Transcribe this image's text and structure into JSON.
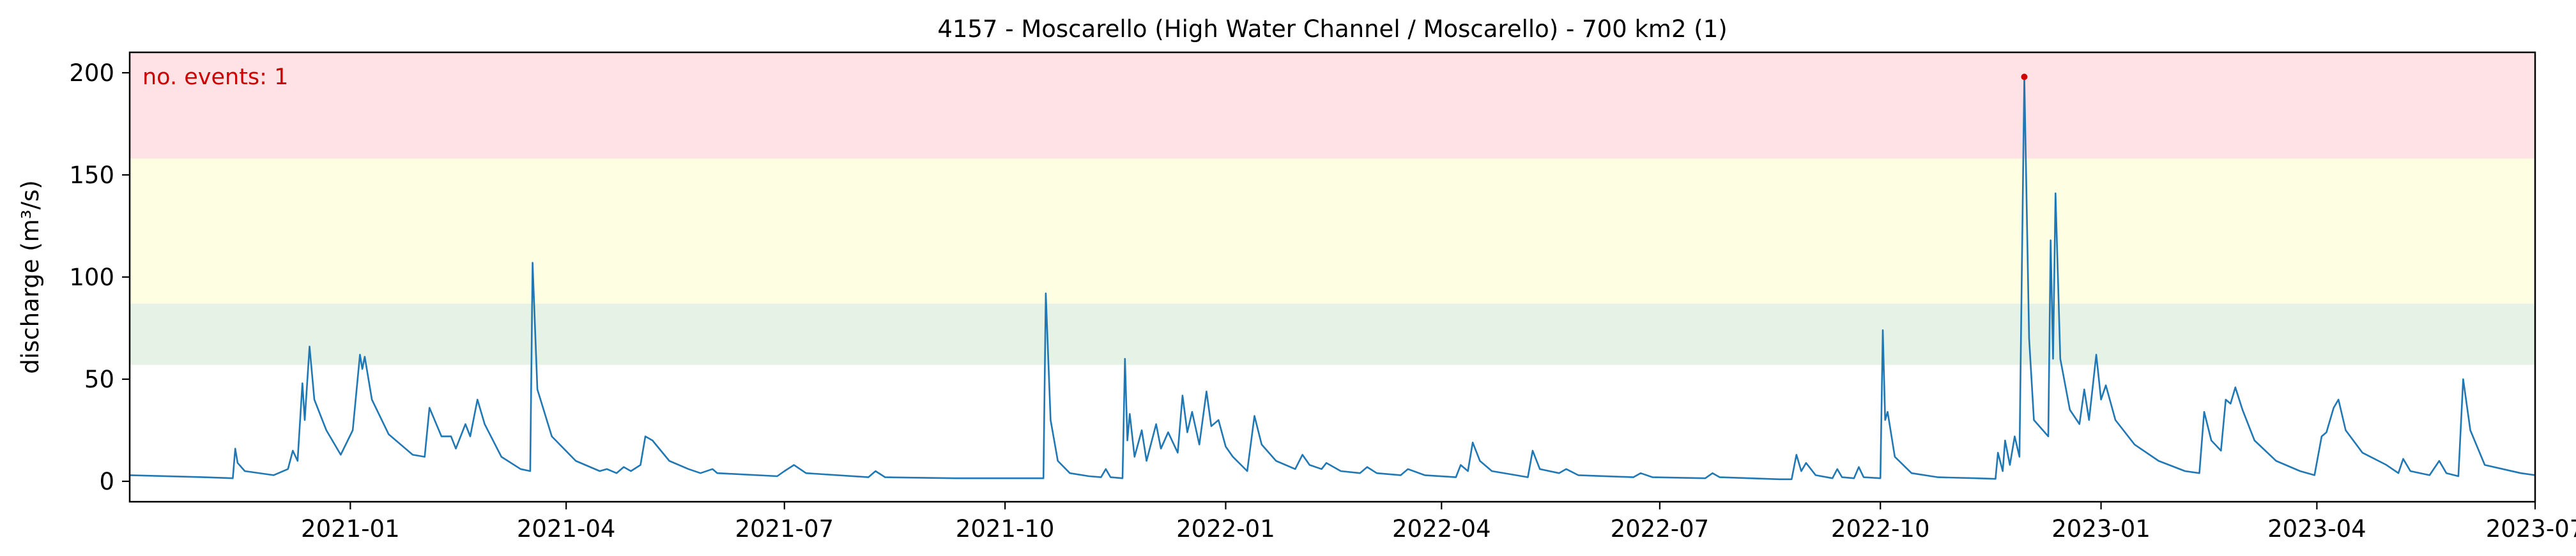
{
  "chart_data": {
    "type": "line",
    "title": "4157 - Moscarello (High Water Channel / Moscarello) - 700 km2 (1)",
    "xlabel": "",
    "ylabel": "discharge (m³/s)",
    "xlim": [
      "2020-10-01",
      "2023-07-01"
    ],
    "ylim": [
      -10,
      210
    ],
    "x_ticks": [
      "2021-01",
      "2021-04",
      "2021-07",
      "2021-10",
      "2022-01",
      "2022-04",
      "2022-07",
      "2022-10",
      "2023-01",
      "2023-04",
      "2023-07"
    ],
    "y_ticks": [
      0,
      50,
      100,
      150,
      200
    ],
    "grid": false,
    "annotation": {
      "text": "no. events: 1",
      "color": "#cc0000"
    },
    "threshold_bands": [
      {
        "from": 57,
        "to": 87,
        "color": "#e5f2e5"
      },
      {
        "from": 87,
        "to": 158,
        "color": "#fefee3"
      },
      {
        "from": 158,
        "to": 210,
        "color": "#ffe2e5"
      }
    ],
    "series": [
      {
        "color": "#1f77b4",
        "points": [
          [
            "2020-10-01",
            3
          ],
          [
            "2020-11-01",
            2
          ],
          [
            "2020-11-13",
            1.5
          ],
          [
            "2020-11-14",
            16
          ],
          [
            "2020-11-15",
            9
          ],
          [
            "2020-11-18",
            5
          ],
          [
            "2020-11-30",
            3
          ],
          [
            "2020-12-06",
            6
          ],
          [
            "2020-12-08",
            15
          ],
          [
            "2020-12-10",
            10
          ],
          [
            "2020-12-12",
            48
          ],
          [
            "2020-12-13",
            30
          ],
          [
            "2020-12-15",
            66
          ],
          [
            "2020-12-17",
            40
          ],
          [
            "2020-12-22",
            25
          ],
          [
            "2020-12-28",
            13
          ],
          [
            "2021-01-02",
            25
          ],
          [
            "2021-01-05",
            62
          ],
          [
            "2021-01-06",
            55
          ],
          [
            "2021-01-07",
            61
          ],
          [
            "2021-01-10",
            40
          ],
          [
            "2021-01-17",
            23
          ],
          [
            "2021-01-27",
            13
          ],
          [
            "2021-02-01",
            12
          ],
          [
            "2021-02-03",
            36
          ],
          [
            "2021-02-08",
            22
          ],
          [
            "2021-02-12",
            22
          ],
          [
            "2021-02-14",
            16
          ],
          [
            "2021-02-18",
            28
          ],
          [
            "2021-02-20",
            22
          ],
          [
            "2021-02-23",
            40
          ],
          [
            "2021-02-26",
            28
          ],
          [
            "2021-03-05",
            12
          ],
          [
            "2021-03-13",
            6
          ],
          [
            "2021-03-17",
            5
          ],
          [
            "2021-03-18",
            107
          ],
          [
            "2021-03-20",
            45
          ],
          [
            "2021-03-26",
            22
          ],
          [
            "2021-04-05",
            10
          ],
          [
            "2021-04-15",
            5
          ],
          [
            "2021-04-18",
            6
          ],
          [
            "2021-04-22",
            4
          ],
          [
            "2021-04-25",
            7
          ],
          [
            "2021-04-28",
            5
          ],
          [
            "2021-05-02",
            8
          ],
          [
            "2021-05-04",
            22
          ],
          [
            "2021-05-07",
            20
          ],
          [
            "2021-05-14",
            10
          ],
          [
            "2021-05-22",
            6
          ],
          [
            "2021-05-27",
            4
          ],
          [
            "2021-06-01",
            6
          ],
          [
            "2021-06-03",
            4
          ],
          [
            "2021-06-28",
            2.5
          ],
          [
            "2021-07-01",
            5
          ],
          [
            "2021-07-05",
            8
          ],
          [
            "2021-07-10",
            4
          ],
          [
            "2021-08-05",
            2
          ],
          [
            "2021-08-08",
            5
          ],
          [
            "2021-08-12",
            2
          ],
          [
            "2021-09-10",
            1.5
          ],
          [
            "2021-10-17",
            1.5
          ],
          [
            "2021-10-18",
            92
          ],
          [
            "2021-10-20",
            30
          ],
          [
            "2021-10-23",
            10
          ],
          [
            "2021-10-28",
            4
          ],
          [
            "2021-11-05",
            2.5
          ],
          [
            "2021-11-10",
            2
          ],
          [
            "2021-11-12",
            6
          ],
          [
            "2021-11-14",
            2
          ],
          [
            "2021-11-19",
            1.5
          ],
          [
            "2021-11-20",
            60
          ],
          [
            "2021-11-21",
            20
          ],
          [
            "2021-11-22",
            33
          ],
          [
            "2021-11-24",
            12
          ],
          [
            "2021-11-27",
            25
          ],
          [
            "2021-11-29",
            10
          ],
          [
            "2021-12-03",
            28
          ],
          [
            "2021-12-05",
            16
          ],
          [
            "2021-12-08",
            24
          ],
          [
            "2021-12-12",
            14
          ],
          [
            "2021-12-14",
            42
          ],
          [
            "2021-12-16",
            24
          ],
          [
            "2021-12-18",
            34
          ],
          [
            "2021-12-21",
            18
          ],
          [
            "2021-12-24",
            44
          ],
          [
            "2021-12-26",
            27
          ],
          [
            "2021-12-29",
            30
          ],
          [
            "2022-01-01",
            17
          ],
          [
            "2022-01-04",
            12
          ],
          [
            "2022-01-10",
            5
          ],
          [
            "2022-01-13",
            32
          ],
          [
            "2022-01-16",
            18
          ],
          [
            "2022-01-22",
            10
          ],
          [
            "2022-01-30",
            6
          ],
          [
            "2022-02-02",
            13
          ],
          [
            "2022-02-05",
            8
          ],
          [
            "2022-02-10",
            6
          ],
          [
            "2022-02-12",
            9
          ],
          [
            "2022-02-18",
            5
          ],
          [
            "2022-02-26",
            4
          ],
          [
            "2022-03-01",
            7
          ],
          [
            "2022-03-05",
            4
          ],
          [
            "2022-03-15",
            3
          ],
          [
            "2022-03-18",
            6
          ],
          [
            "2022-03-25",
            3
          ],
          [
            "2022-04-07",
            2
          ],
          [
            "2022-04-09",
            8
          ],
          [
            "2022-04-12",
            5
          ],
          [
            "2022-04-14",
            19
          ],
          [
            "2022-04-17",
            10
          ],
          [
            "2022-04-22",
            5
          ],
          [
            "2022-05-02",
            3
          ],
          [
            "2022-05-07",
            2
          ],
          [
            "2022-05-09",
            15
          ],
          [
            "2022-05-12",
            6
          ],
          [
            "2022-05-20",
            4
          ],
          [
            "2022-05-23",
            6
          ],
          [
            "2022-05-28",
            3
          ],
          [
            "2022-06-20",
            2
          ],
          [
            "2022-06-23",
            4
          ],
          [
            "2022-06-28",
            2
          ],
          [
            "2022-07-20",
            1.5
          ],
          [
            "2022-07-23",
            4
          ],
          [
            "2022-07-26",
            2
          ],
          [
            "2022-08-20",
            1
          ],
          [
            "2022-08-25",
            1
          ],
          [
            "2022-08-27",
            13
          ],
          [
            "2022-08-29",
            5
          ],
          [
            "2022-08-31",
            9
          ],
          [
            "2022-09-04",
            3
          ],
          [
            "2022-09-11",
            1.5
          ],
          [
            "2022-09-13",
            6
          ],
          [
            "2022-09-15",
            2
          ],
          [
            "2022-09-20",
            1.5
          ],
          [
            "2022-09-22",
            7
          ],
          [
            "2022-09-24",
            2
          ],
          [
            "2022-10-01",
            1.5
          ],
          [
            "2022-10-02",
            74
          ],
          [
            "2022-10-03",
            30
          ],
          [
            "2022-10-04",
            34
          ],
          [
            "2022-10-07",
            12
          ],
          [
            "2022-10-14",
            4
          ],
          [
            "2022-10-25",
            2
          ],
          [
            "2022-11-10",
            1.5
          ],
          [
            "2022-11-18",
            1.2
          ],
          [
            "2022-11-19",
            14
          ],
          [
            "2022-11-21",
            5
          ],
          [
            "2022-11-22",
            20
          ],
          [
            "2022-11-24",
            8
          ],
          [
            "2022-11-26",
            22
          ],
          [
            "2022-11-28",
            12
          ],
          [
            "2022-11-30",
            198
          ],
          [
            "2022-12-02",
            70
          ],
          [
            "2022-12-04",
            30
          ],
          [
            "2022-12-10",
            22
          ],
          [
            "2022-12-11",
            118
          ],
          [
            "2022-12-12",
            60
          ],
          [
            "2022-12-13",
            141
          ],
          [
            "2022-12-15",
            60
          ],
          [
            "2022-12-19",
            35
          ],
          [
            "2022-12-23",
            28
          ],
          [
            "2022-12-25",
            45
          ],
          [
            "2022-12-27",
            30
          ],
          [
            "2022-12-30",
            62
          ],
          [
            "2023-01-01",
            40
          ],
          [
            "2023-01-03",
            47
          ],
          [
            "2023-01-07",
            30
          ],
          [
            "2023-01-15",
            18
          ],
          [
            "2023-01-25",
            10
          ],
          [
            "2023-02-05",
            5
          ],
          [
            "2023-02-11",
            4
          ],
          [
            "2023-02-13",
            34
          ],
          [
            "2023-02-16",
            20
          ],
          [
            "2023-02-20",
            15
          ],
          [
            "2023-02-22",
            40
          ],
          [
            "2023-02-24",
            38
          ],
          [
            "2023-02-26",
            46
          ],
          [
            "2023-03-01",
            35
          ],
          [
            "2023-03-06",
            20
          ],
          [
            "2023-03-15",
            10
          ],
          [
            "2023-03-25",
            5
          ],
          [
            "2023-03-31",
            3
          ],
          [
            "2023-04-03",
            22
          ],
          [
            "2023-04-05",
            24
          ],
          [
            "2023-04-08",
            36
          ],
          [
            "2023-04-10",
            40
          ],
          [
            "2023-04-13",
            25
          ],
          [
            "2023-04-20",
            14
          ],
          [
            "2023-04-30",
            8
          ],
          [
            "2023-05-05",
            4
          ],
          [
            "2023-05-07",
            11
          ],
          [
            "2023-05-10",
            5
          ],
          [
            "2023-05-18",
            3
          ],
          [
            "2023-05-22",
            10
          ],
          [
            "2023-05-25",
            4
          ],
          [
            "2023-05-30",
            2.5
          ],
          [
            "2023-06-01",
            50
          ],
          [
            "2023-06-04",
            25
          ],
          [
            "2023-06-10",
            8
          ],
          [
            "2023-06-25",
            4
          ],
          [
            "2023-07-01",
            3
          ]
        ]
      }
    ],
    "event_points": [
      [
        "2022-11-30",
        198
      ]
    ]
  }
}
